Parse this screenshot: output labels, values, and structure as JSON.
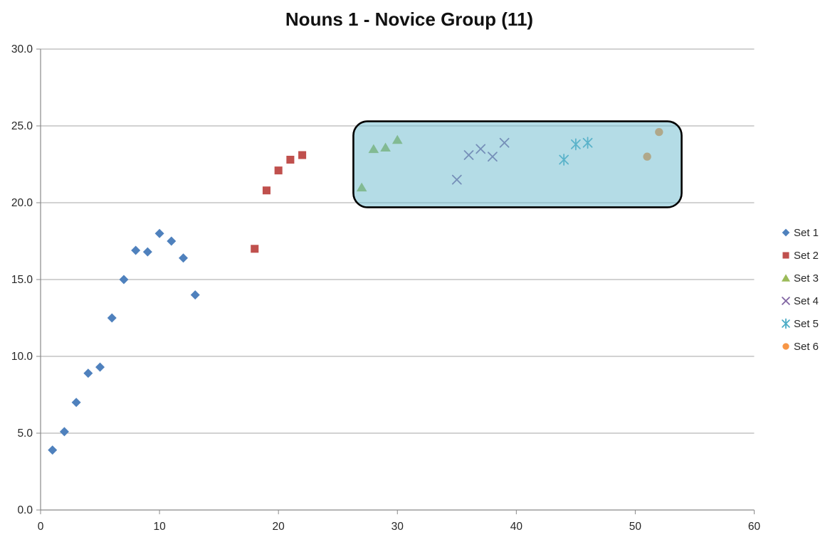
{
  "title": "Nouns 1 - Novice Group (11)",
  "chart_data": {
    "type": "scatter",
    "title": "Nouns 1 - Novice Group (11)",
    "xlabel": "",
    "ylabel": "",
    "xlim": [
      0,
      60
    ],
    "ylim": [
      0,
      30
    ],
    "x_tick_values": [
      0,
      10,
      20,
      30,
      40,
      50,
      60
    ],
    "x_tick_labels": [
      "0",
      "10",
      "20",
      "30",
      "40",
      "50",
      "60"
    ],
    "y_tick_values": [
      0,
      5,
      10,
      15,
      20,
      25,
      30
    ],
    "y_tick_labels": [
      "0.0",
      "5.0",
      "10.0",
      "15.0",
      "20.0",
      "25.0",
      "30.0"
    ],
    "grid": "horizontal",
    "gridline_color": "#A6A6A6",
    "axis_color": "#898989",
    "tick_label_color": "#262626",
    "legend_position": "right",
    "series": [
      {
        "name": "Set 1",
        "marker": "diamond",
        "color": "#4F81BD",
        "points": [
          [
            1,
            3.9
          ],
          [
            2,
            5.1
          ],
          [
            3,
            7.0
          ],
          [
            4,
            8.9
          ],
          [
            5,
            9.3
          ],
          [
            6,
            12.5
          ],
          [
            7,
            15.0
          ],
          [
            8,
            16.9
          ],
          [
            9,
            16.8
          ],
          [
            10,
            18.0
          ],
          [
            11,
            17.5
          ],
          [
            12,
            16.4
          ],
          [
            13,
            14.0
          ]
        ]
      },
      {
        "name": "Set 2",
        "marker": "square",
        "color": "#C0504D",
        "points": [
          [
            18,
            17.0
          ],
          [
            19,
            20.8
          ],
          [
            20,
            22.1
          ],
          [
            21,
            22.8
          ],
          [
            22,
            23.1
          ]
        ]
      },
      {
        "name": "Set 3",
        "marker": "triangle",
        "color": "#9BBB59",
        "points": [
          [
            27,
            21.0
          ],
          [
            28,
            23.5
          ],
          [
            29,
            23.6
          ],
          [
            30,
            24.1
          ]
        ]
      },
      {
        "name": "Set 4",
        "marker": "x",
        "color": "#8064A2",
        "points": [
          [
            35,
            21.5
          ],
          [
            36,
            23.1
          ],
          [
            37,
            23.5
          ],
          [
            38,
            23.0
          ],
          [
            39,
            23.9
          ]
        ]
      },
      {
        "name": "Set 5",
        "marker": "asterisk",
        "color": "#4BACC6",
        "points": [
          [
            44,
            22.8
          ],
          [
            45,
            23.8
          ],
          [
            46,
            23.9
          ]
        ]
      },
      {
        "name": "Set 6",
        "marker": "circle",
        "color": "#F79646",
        "points": [
          [
            51,
            23.0
          ],
          [
            52,
            24.6
          ]
        ]
      }
    ],
    "annotation_box": {
      "x0": 26.3,
      "x1": 53.9,
      "y0": 19.7,
      "y1": 25.3,
      "fill": "rgba(105,185,205,0.5)",
      "border_color": "#000000",
      "border_width": 2.6,
      "corner_radius": 20
    }
  },
  "legend": {
    "items": [
      {
        "label": "Set 1"
      },
      {
        "label": "Set 2"
      },
      {
        "label": "Set 3"
      },
      {
        "label": "Set 4"
      },
      {
        "label": "Set 5"
      },
      {
        "label": "Set 6"
      }
    ]
  }
}
